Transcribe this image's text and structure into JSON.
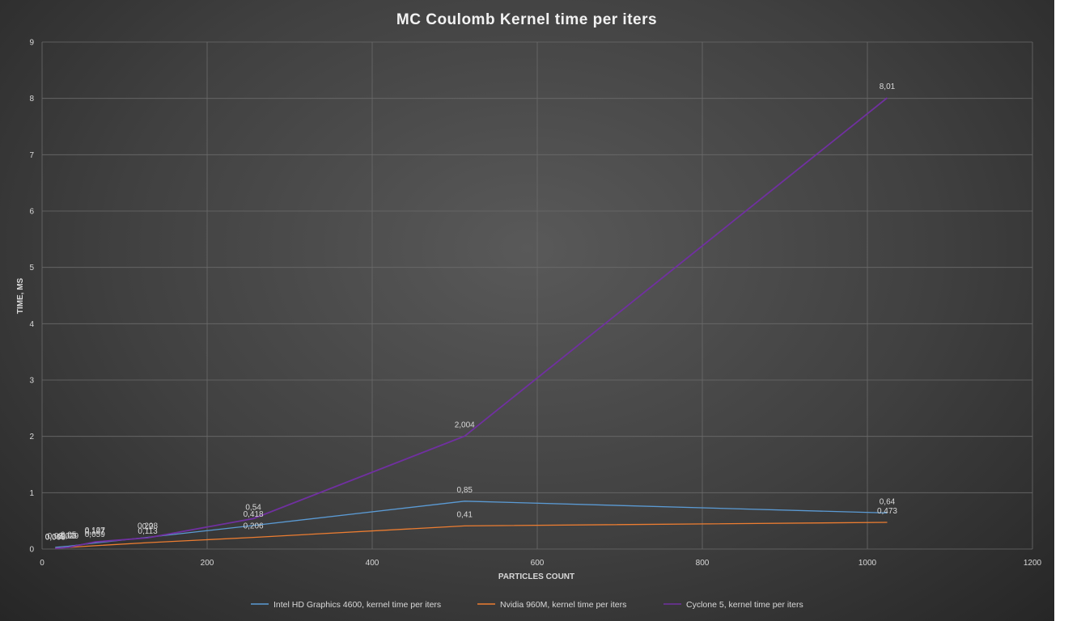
{
  "chart_data": {
    "type": "line",
    "title": "MC Coulomb  Kernel time per iters",
    "xlabel": "PARTICLES COUNT",
    "ylabel": "TIME, MS",
    "xlim": [
      0,
      1200
    ],
    "ylim": [
      0,
      9
    ],
    "xticks": [
      0,
      200,
      400,
      600,
      800,
      1000,
      1200
    ],
    "yticks": [
      0,
      1,
      2,
      3,
      4,
      5,
      6,
      7,
      8,
      9
    ],
    "grid": true,
    "legend_position": "bottom",
    "series": [
      {
        "name": "Intel HD Graphics 4600, kernel time per iters",
        "color": "#5b9bd5",
        "points": [
          {
            "x": 16,
            "y": 0.03,
            "label": "0,03"
          },
          {
            "x": 32,
            "y": 0.05,
            "label": "0,05"
          },
          {
            "x": 64,
            "y": 0.107,
            "label": "0,107"
          },
          {
            "x": 128,
            "y": 0.208,
            "label": "0,208"
          },
          {
            "x": 256,
            "y": 0.418,
            "label": "0,418"
          },
          {
            "x": 512,
            "y": 0.85,
            "label": "0,85"
          },
          {
            "x": 1024,
            "y": 0.64,
            "label": "0,64"
          }
        ]
      },
      {
        "name": "Nvidia 960M, kernel time per iters",
        "color": "#ed7d31",
        "points": [
          {
            "x": 16,
            "y": 0.015,
            "label": "0,015"
          },
          {
            "x": 32,
            "y": 0.029,
            "label": "0,029"
          },
          {
            "x": 64,
            "y": 0.059,
            "label": "0,059"
          },
          {
            "x": 128,
            "y": 0.113,
            "label": "0,113"
          },
          {
            "x": 256,
            "y": 0.206,
            "label": "0,206"
          },
          {
            "x": 512,
            "y": 0.41,
            "label": "0,41"
          },
          {
            "x": 1024,
            "y": 0.473,
            "label": "0,473"
          }
        ]
      },
      {
        "name": "Cyclone 5, kernel time per iters",
        "color": "#7030a0",
        "points": [
          {
            "x": 16,
            "y": 0.008,
            "label": "0,008"
          },
          {
            "x": 32,
            "y": 0.03,
            "label": "0,03"
          },
          {
            "x": 64,
            "y": 0.127,
            "label": "0,127"
          },
          {
            "x": 128,
            "y": 0.2,
            "label": "0,2"
          },
          {
            "x": 256,
            "y": 0.54,
            "label": "0,54"
          },
          {
            "x": 512,
            "y": 2.004,
            "label": "2,004"
          },
          {
            "x": 1024,
            "y": 8.01,
            "label": "8,01"
          }
        ]
      }
    ]
  }
}
